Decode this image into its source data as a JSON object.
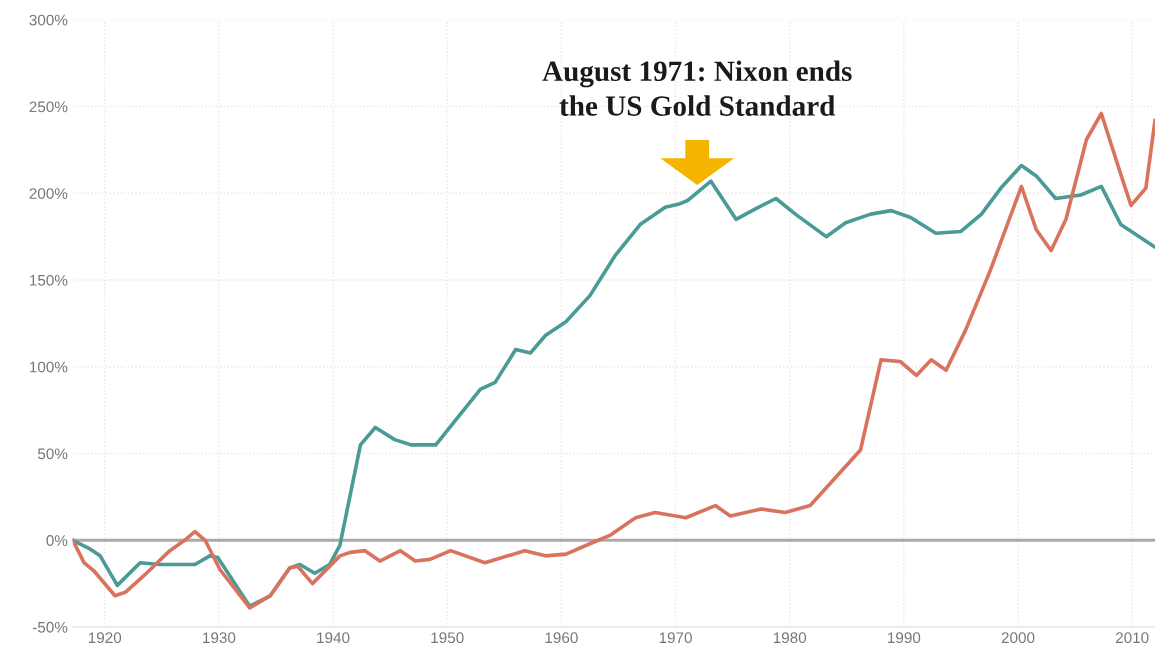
{
  "chart_data": {
    "type": "line",
    "x": [
      1917.2,
      1918.7,
      1919.6,
      1921.1,
      1923.1,
      1924.8,
      1927.9,
      1929.2,
      1929.9,
      1932.7,
      1934.5,
      1936.2,
      1937.1,
      1938.4,
      1939.7,
      1940.6,
      1942.4,
      1943.7,
      1945.4,
      1946.8,
      1949.0,
      1950.7,
      1952.9,
      1954.2,
      1956.0,
      1957.3,
      1958.6,
      1960.4,
      1962.5,
      1964.7,
      1966.9,
      1969.1,
      1970.4,
      1971.1,
      1973.1,
      1975.3,
      1977.0,
      1978.8,
      1980.5,
      1983.2,
      1984.9,
      1987.1,
      1988.9,
      1990.6,
      1992.8,
      1995.0,
      1996.8,
      1998.5,
      2000.3,
      2001.6,
      2003.3,
      2005.5,
      2007.3,
      2009.0,
      2012.0
    ],
    "series": [
      {
        "color": "#4a9b96",
        "values": [
          0,
          -5,
          -9,
          -26,
          -13,
          -14,
          -14,
          -9,
          -10,
          -38,
          -32,
          -16,
          -14,
          -19,
          -14,
          -3,
          55,
          65,
          58,
          55,
          55,
          69,
          87,
          91,
          110,
          108,
          118,
          126,
          141,
          164,
          182,
          192,
          194,
          196,
          207,
          185,
          191,
          197,
          188,
          175,
          183,
          188,
          190,
          186,
          177,
          178,
          188,
          203,
          216,
          210,
          197,
          199,
          204,
          182,
          169
        ]
      },
      {
        "color": "#d9735e",
        "x": [
          1917.2,
          1918.2,
          1919.1,
          1920.9,
          1921.8,
          1923.5,
          1925.7,
          1927.0,
          1927.9,
          1928.8,
          1930.1,
          1932.7,
          1934.5,
          1936.2,
          1936.9,
          1938.2,
          1940.6,
          1941.5,
          1942.8,
          1944.1,
          1945.9,
          1947.2,
          1948.5,
          1950.3,
          1953.3,
          1956.8,
          1958.6,
          1960.4,
          1962.5,
          1964.3,
          1966.5,
          1968.2,
          1970.9,
          1973.5,
          1974.8,
          1977.5,
          1979.6,
          1981.8,
          1984.0,
          1986.2,
          1988.0,
          1989.7,
          1991.1,
          1992.4,
          1993.7,
          1995.4,
          1997.6,
          2000.3,
          2001.6,
          2002.9,
          2004.2,
          2006.0,
          2007.3,
          2009.0,
          2009.9,
          2011.2,
          2012.0
        ],
        "values": [
          0,
          -13,
          -18,
          -32,
          -30,
          -20,
          -6,
          0,
          5,
          0,
          -17,
          -39,
          -32,
          -16,
          -15,
          -25,
          -9,
          -7,
          -6,
          -12,
          -6,
          -12,
          -11,
          -6,
          -13,
          -6,
          -9,
          -8,
          -2,
          3,
          13,
          16,
          13,
          20,
          14,
          18,
          16,
          20,
          36,
          52,
          104,
          103,
          95,
          104,
          98,
          121,
          156,
          204,
          179,
          167,
          185,
          231,
          246,
          211,
          193,
          203,
          242
        ]
      }
    ],
    "xlim": [
      1917.2,
      2012
    ],
    "xticks": [
      1920,
      1930,
      1940,
      1950,
      1960,
      1970,
      1980,
      1990,
      2000,
      2010
    ],
    "ylim": [
      -50,
      300
    ],
    "yticks": [
      {
        "value": -50,
        "label": "-50%"
      },
      {
        "value": 0,
        "label": "0%"
      },
      {
        "value": 50,
        "label": "50%"
      },
      {
        "value": 100,
        "label": "100%"
      },
      {
        "value": 150,
        "label": "150%"
      },
      {
        "value": 200,
        "label": "200%"
      },
      {
        "value": 250,
        "label": "250%"
      },
      {
        "value": 300,
        "label": "300%"
      }
    ],
    "grid": true,
    "marker": "none",
    "line_style": "solid",
    "ref_lines": [
      {
        "axis": "y",
        "value": 0,
        "color": "#aaaaaa",
        "line_style": "solid"
      }
    ],
    "annotations": [
      "August 1971: Nixon ends\nthe US Gold Standard"
    ]
  }
}
